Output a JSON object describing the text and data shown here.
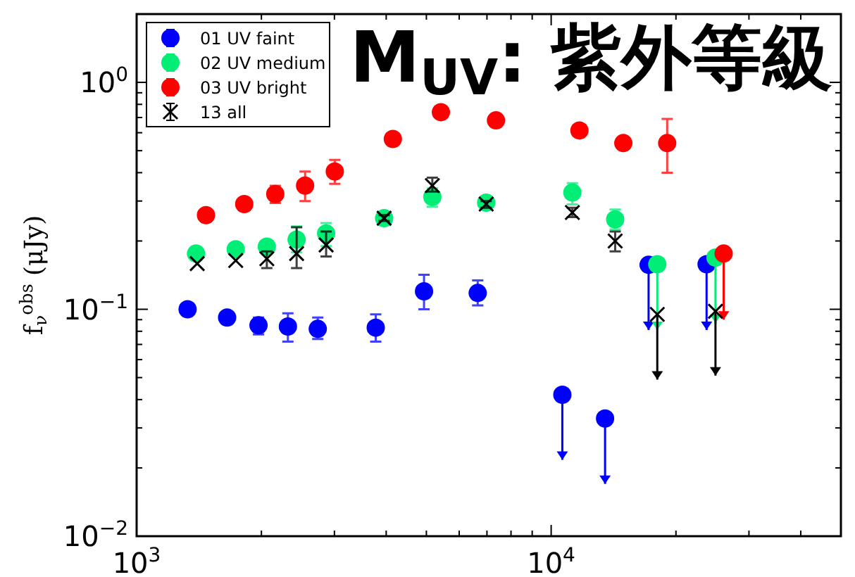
{
  "chart_data": {
    "type": "scatter",
    "title": "M$_{UV}$: 紫外等級",
    "ylabel": "f$_{ν}$$^{obs}$ (μJy)",
    "log": "xy",
    "xlim": [
      1000,
      50000
    ],
    "ylim": [
      0.01,
      2
    ],
    "xticks": [
      {
        "value": 1000,
        "label": "10$^{3}$"
      },
      {
        "value": 10000,
        "label": "10$^{4}$"
      }
    ],
    "yticks": [
      {
        "value": 0.01,
        "label": "10$^{−2}$"
      },
      {
        "value": 0.1,
        "label": "10$^{−1}$"
      },
      {
        "value": 1,
        "label": "10$^{0}$"
      }
    ],
    "legend": "top left",
    "grid": false,
    "series": [
      {
        "name": "01 UV faint",
        "color": "#0000ff",
        "marker": "circle",
        "x": [
          1327,
          1653,
          1968,
          2317,
          2735,
          3774,
          4935,
          6650,
          10640,
          13490,
          17180,
          23710
        ],
        "values": [
          0.1,
          0.092,
          0.085,
          0.084,
          0.082,
          0.083,
          0.12,
          0.118,
          0.042,
          0.033,
          0.157,
          0.158
        ],
        "errors": [
          null,
          null,
          [
            0.0775,
            0.092
          ],
          [
            0.072,
            0.096
          ],
          [
            0.074,
            0.092
          ],
          [
            0.072,
            0.095
          ],
          [
            0.1,
            0.142
          ],
          [
            0.104,
            0.134
          ],
          [
            0.0217,
            0.042
          ],
          [
            0.017,
            0.033
          ],
          [
            0.081,
            0.157
          ],
          [
            0.081,
            0.158
          ]
        ]
      },
      {
        "name": "02 UV medium",
        "color": "#00ee76",
        "marker": "circle",
        "x": [
          1391,
          1734,
          2061,
          2432,
          2865,
          3954,
          5168,
          6970,
          11250,
          14270,
          18030,
          24910
        ],
        "values": [
          0.176,
          0.184,
          0.189,
          0.203,
          0.216,
          0.252,
          0.313,
          0.295,
          0.327,
          0.249,
          0.158,
          0.169
        ],
        "errors": [
          null,
          null,
          [
            0.175,
            0.196
          ],
          [
            0.178,
            0.232
          ],
          [
            0.19,
            0.24
          ],
          [
            0.245,
            0.26
          ],
          [
            0.283,
            0.341
          ],
          [
            0.285,
            0.305
          ],
          [
            0.29,
            0.36
          ],
          [
            0.225,
            0.275
          ],
          [
            0.081,
            0.158
          ],
          [
            0.087,
            0.169
          ]
        ]
      },
      {
        "name": "03 UV bright",
        "color": "#ff0000",
        "marker": "circle",
        "x": [
          1470,
          1818,
          2160,
          2549,
          3006,
          4150,
          5420,
          7360,
          11700,
          14930,
          19050,
          26070
        ],
        "values": [
          0.26,
          0.291,
          0.322,
          0.351,
          0.405,
          0.563,
          0.739,
          0.68,
          0.614,
          0.54,
          0.54,
          0.176
        ],
        "errors": [
          null,
          null,
          [
            0.294,
            0.35
          ],
          [
            0.3,
            0.405
          ],
          [
            0.357,
            0.455
          ],
          null,
          null,
          null,
          null,
          null,
          [
            0.4,
            0.69
          ],
          [
            0.09,
            0.176
          ]
        ]
      },
      {
        "name": "13 all",
        "color": "#000000",
        "marker": "cross",
        "x": [
          1400,
          1734,
          2061,
          2432,
          2865,
          3954,
          5168,
          6970,
          11250,
          14270,
          18030,
          24910
        ],
        "values": [
          0.159,
          0.164,
          0.167,
          0.176,
          0.192,
          0.252,
          0.351,
          0.291,
          0.267,
          0.2,
          0.095,
          0.098
        ],
        "errors": [
          null,
          null,
          [
            0.152,
            0.18
          ],
          [
            0.152,
            0.23
          ],
          [
            0.171,
            0.22
          ],
          [
            0.245,
            0.26
          ],
          [
            0.33,
            0.38
          ],
          [
            0.28,
            0.3
          ],
          [
            0.255,
            0.28
          ],
          [
            0.18,
            0.22
          ],
          [
            0.049,
            0.095
          ],
          [
            0.051,
            0.098
          ]
        ]
      }
    ]
  }
}
